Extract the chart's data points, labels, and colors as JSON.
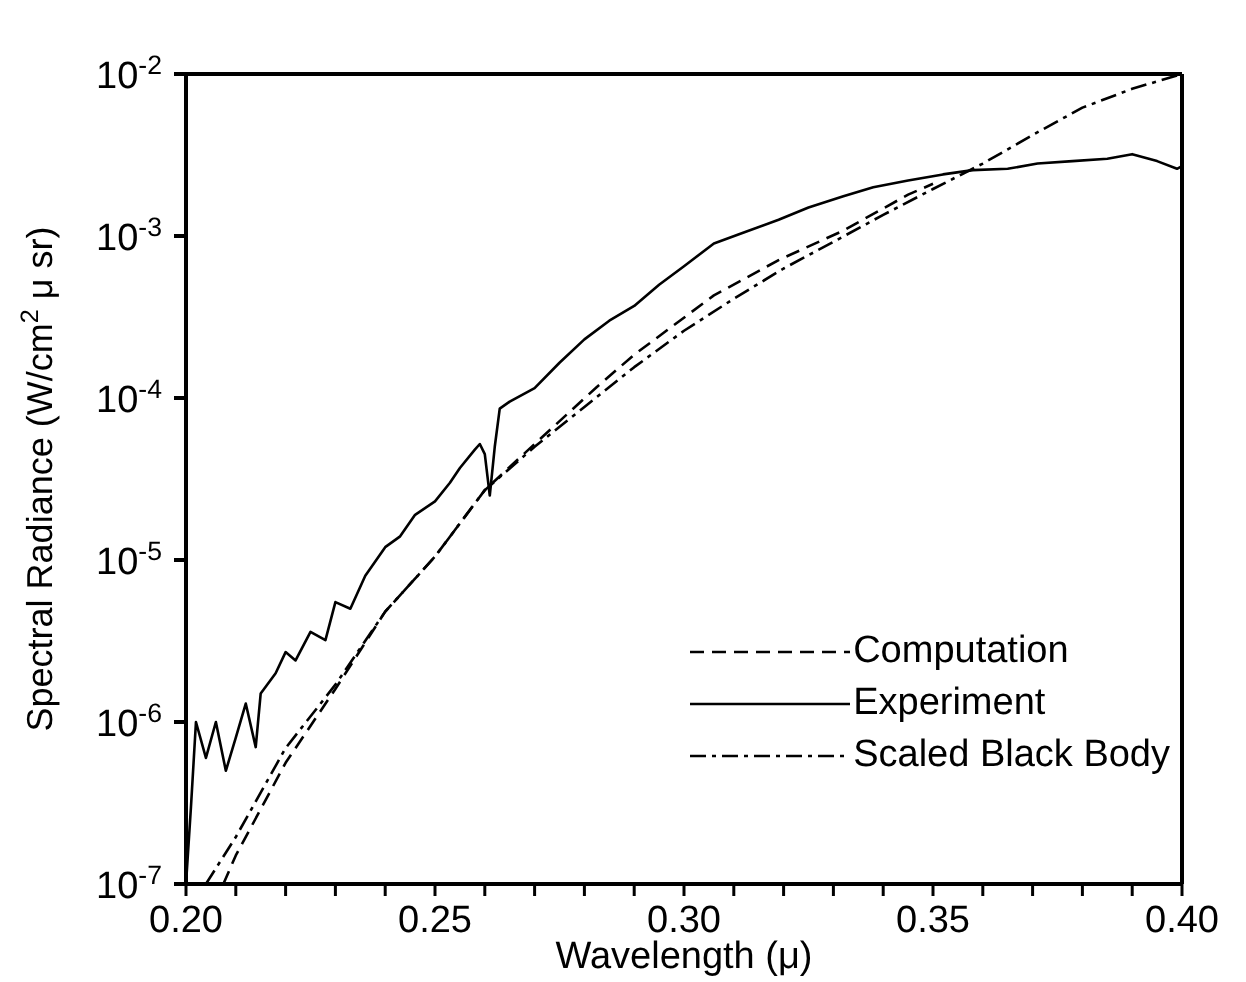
{
  "chart_data": {
    "type": "line",
    "xlabel": "Wavelength (μ)",
    "ylabel": "Spectral Radiance (W/cm$^{2}$ μ sr)",
    "log": "y",
    "grid": false,
    "legend": "bottom right",
    "xlim": [
      0.2,
      0.4
    ],
    "xticks": [
      {
        "value": 0.2,
        "label": "0.20"
      },
      {
        "value": 0.21,
        "label": null
      },
      {
        "value": 0.22,
        "label": null
      },
      {
        "value": 0.23,
        "label": null
      },
      {
        "value": 0.24,
        "label": null
      },
      {
        "value": 0.25,
        "label": "0.25"
      },
      {
        "value": 0.26,
        "label": null
      },
      {
        "value": 0.27,
        "label": null
      },
      {
        "value": 0.28,
        "label": null
      },
      {
        "value": 0.29,
        "label": null
      },
      {
        "value": 0.3,
        "label": "0.30"
      },
      {
        "value": 0.31,
        "label": null
      },
      {
        "value": 0.32,
        "label": null
      },
      {
        "value": 0.33,
        "label": null
      },
      {
        "value": 0.34,
        "label": null
      },
      {
        "value": 0.35,
        "label": "0.35"
      },
      {
        "value": 0.36,
        "label": null
      },
      {
        "value": 0.37,
        "label": null
      },
      {
        "value": 0.38,
        "label": null
      },
      {
        "value": 0.39,
        "label": null
      },
      {
        "value": 0.4,
        "label": "0.40"
      }
    ],
    "ylim": [
      1e-07,
      0.01
    ],
    "yticks": [
      {
        "value": 1e-07,
        "label": "10$^{-7}$"
      },
      {
        "value": 1e-06,
        "label": "10$^{-6}$"
      },
      {
        "value": 1e-05,
        "label": "10$^{-5}$"
      },
      {
        "value": 0.0001,
        "label": "10$^{-4}$"
      },
      {
        "value": 0.001,
        "label": "10$^{-3}$"
      },
      {
        "value": 0.01,
        "label": "10$^{-2}$"
      }
    ],
    "series": [
      {
        "name": "Computation",
        "color": "#000000",
        "line_style": "dashed",
        "x": [
          0.2075,
          0.21,
          0.22,
          0.23,
          0.24,
          0.25,
          0.26,
          0.27,
          0.2825,
          0.29,
          0.306,
          0.319,
          0.332,
          0.345,
          0.35
        ],
        "values": [
          1e-07,
          1.5e-07,
          5.6e-07,
          1.6e-06,
          4.8e-06,
          1.05e-05,
          2.7e-05,
          5.2e-05,
          0.000117,
          0.000185,
          0.00043,
          0.00071,
          0.00108,
          0.0018,
          0.0021
        ]
      },
      {
        "name": "Experiment",
        "color": "#000000",
        "line_style": "solid",
        "x": [
          0.2,
          0.201,
          0.202,
          0.204,
          0.206,
          0.208,
          0.21,
          0.212,
          0.214,
          0.215,
          0.218,
          0.22,
          0.222,
          0.225,
          0.228,
          0.23,
          0.233,
          0.236,
          0.24,
          0.243,
          0.246,
          0.25,
          0.253,
          0.255,
          0.258,
          0.259,
          0.26,
          0.261,
          0.262,
          0.263,
          0.265,
          0.27,
          0.275,
          0.28,
          0.285,
          0.29,
          0.295,
          0.3,
          0.306,
          0.312,
          0.319,
          0.325,
          0.332,
          0.338,
          0.345,
          0.352,
          0.358,
          0.365,
          0.371,
          0.378,
          0.385,
          0.39,
          0.395,
          0.399,
          0.4
        ],
        "values": [
          1e-07,
          3e-07,
          1e-06,
          6e-07,
          1e-06,
          5e-07,
          8e-07,
          1.3e-06,
          7e-07,
          1.5e-06,
          2e-06,
          2.7e-06,
          2.4e-06,
          3.6e-06,
          3.2e-06,
          5.5e-06,
          5e-06,
          8e-06,
          1.2e-05,
          1.4e-05,
          1.9e-05,
          2.3e-05,
          3e-05,
          3.7e-05,
          4.8e-05,
          5.2e-05,
          4.5e-05,
          2.5e-05,
          5e-05,
          8.6e-05,
          9.5e-05,
          0.000115,
          0.000165,
          0.00023,
          0.0003,
          0.00037,
          0.0005,
          0.00065,
          0.0009,
          0.00105,
          0.00126,
          0.0015,
          0.00176,
          0.002,
          0.0022,
          0.0024,
          0.00255,
          0.0026,
          0.0028,
          0.0029,
          0.003,
          0.0032,
          0.0029,
          0.0026,
          0.0027
        ]
      },
      {
        "name": "Scaled Black Body",
        "color": "#000000",
        "line_style": "dashdot",
        "x": [
          0.204,
          0.21,
          0.22,
          0.23,
          0.24,
          0.25,
          0.26,
          0.27,
          0.28,
          0.29,
          0.3,
          0.31,
          0.32,
          0.33,
          0.34,
          0.35,
          0.36,
          0.37,
          0.38,
          0.39,
          0.4
        ],
        "values": [
          1e-07,
          1.95e-07,
          6.9e-07,
          1.7e-06,
          4.8e-06,
          1.05e-05,
          2.7e-05,
          5e-05,
          8.8e-05,
          0.000155,
          0.00026,
          0.00041,
          0.00063,
          0.00092,
          0.00135,
          0.00195,
          0.0028,
          0.0042,
          0.0062,
          0.0081,
          0.01
        ]
      }
    ]
  }
}
